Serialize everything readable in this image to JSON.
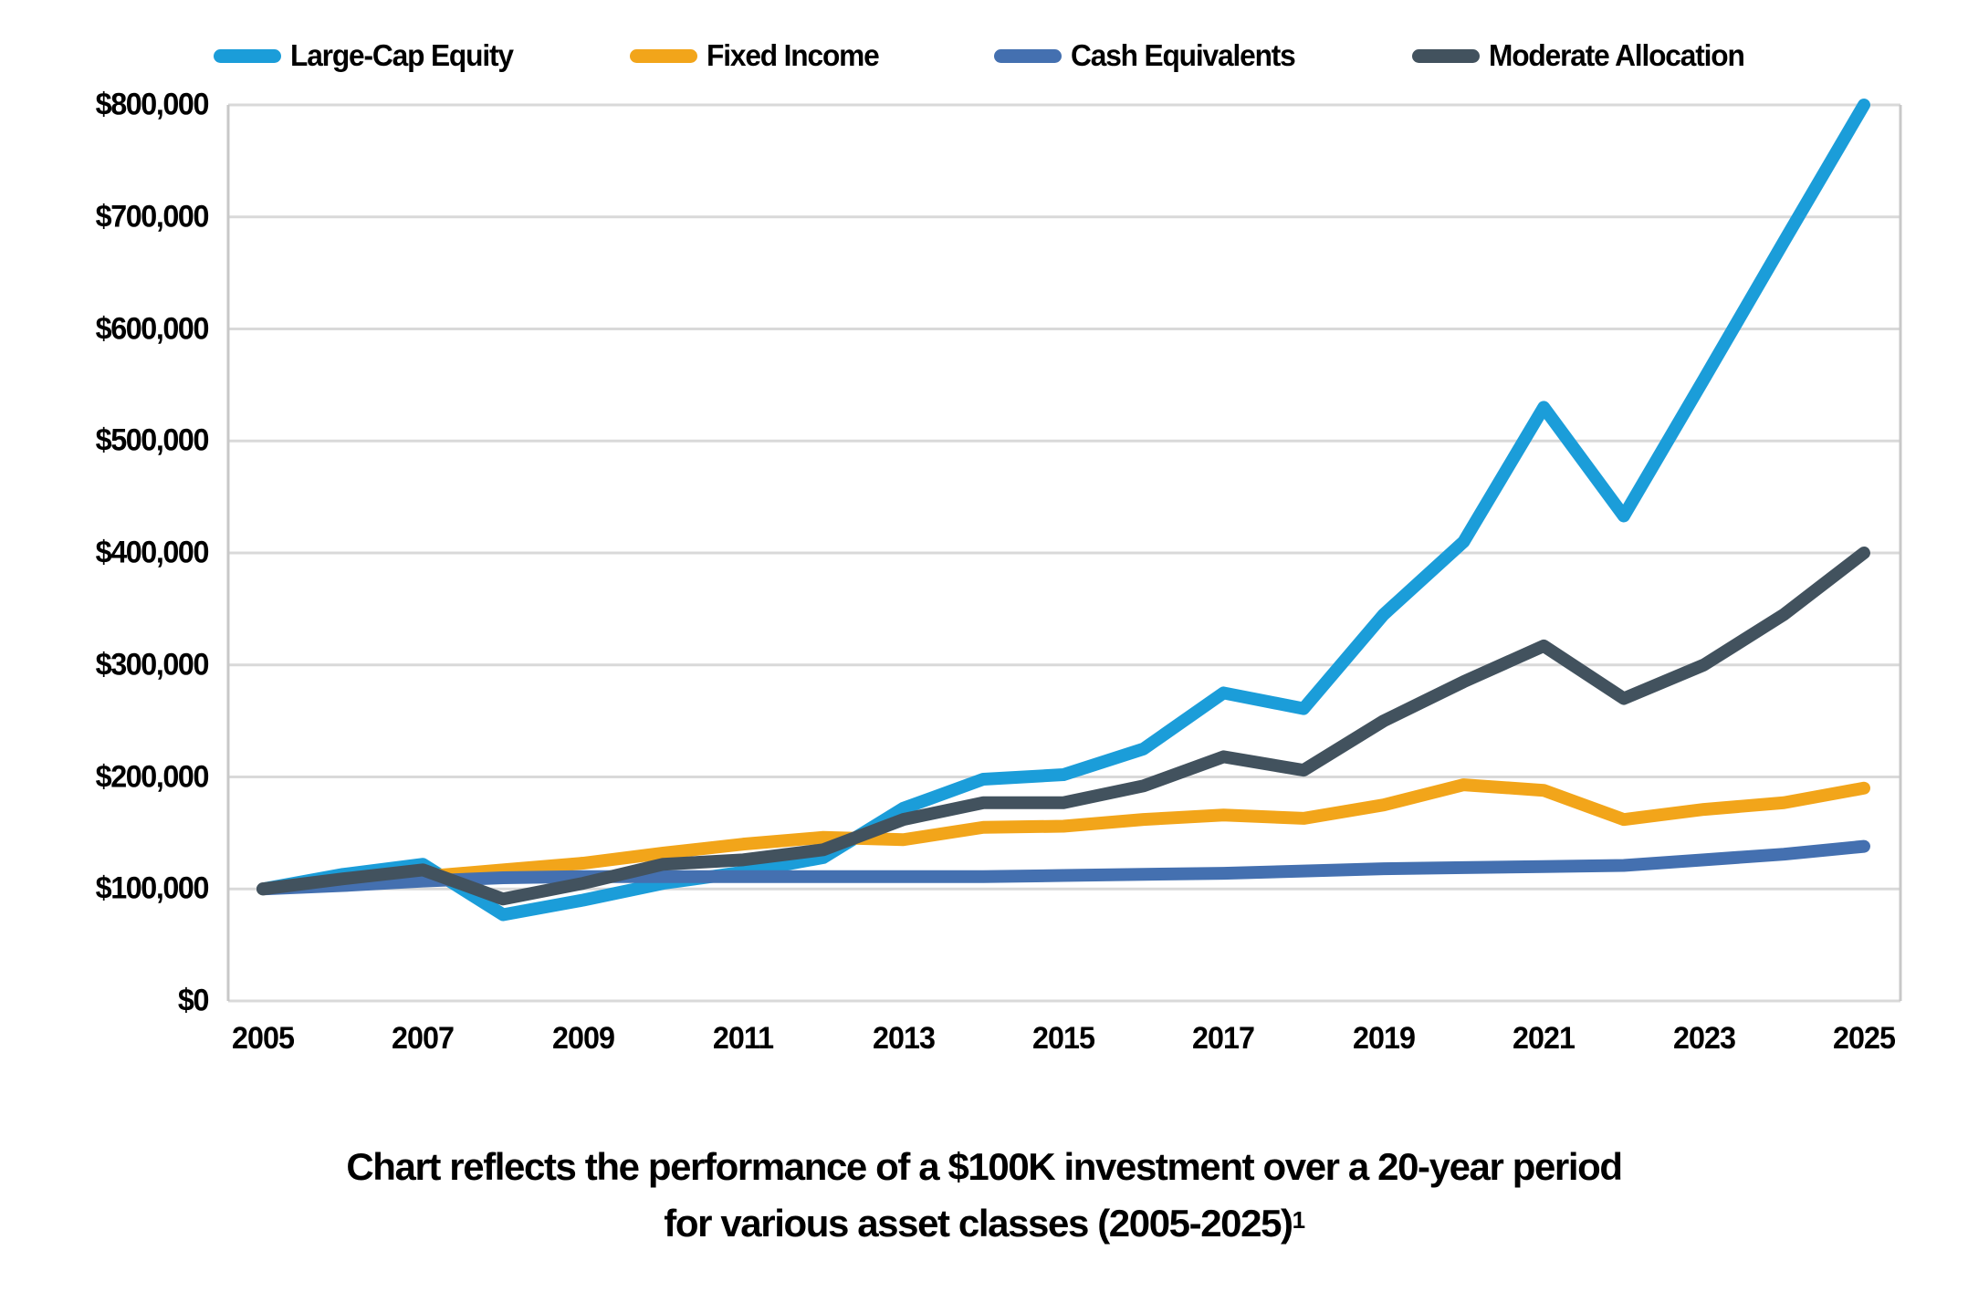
{
  "chart_data": {
    "type": "line",
    "title": "",
    "xlabel": "",
    "ylabel": "",
    "x": [
      2005,
      2006,
      2007,
      2008,
      2009,
      2010,
      2011,
      2012,
      2013,
      2014,
      2015,
      2016,
      2017,
      2018,
      2019,
      2020,
      2021,
      2022,
      2023,
      2024,
      2025
    ],
    "series": [
      {
        "name": "Large-Cap Equity",
        "color": "#1B9DD9",
        "values": [
          100000,
          113000,
          122000,
          77000,
          90000,
          105000,
          115000,
          128000,
          172000,
          198000,
          202000,
          225000,
          275000,
          261000,
          345000,
          410000,
          530000,
          433000,
          555000,
          678000,
          800000
        ]
      },
      {
        "name": "Fixed Income",
        "color": "#F2A51A",
        "values": [
          100000,
          106000,
          111000,
          117000,
          123000,
          132000,
          140000,
          146000,
          144000,
          155000,
          156000,
          162000,
          166000,
          163000,
          175000,
          193000,
          188000,
          162000,
          171000,
          177000,
          190000
        ]
      },
      {
        "name": "Cash Equivalents",
        "color": "#4470B0",
        "values": [
          100000,
          103000,
          107000,
          110000,
          111000,
          111000,
          111000,
          111000,
          111000,
          111000,
          112000,
          113000,
          114000,
          116000,
          118000,
          119000,
          120000,
          121000,
          126000,
          131000,
          138000
        ]
      },
      {
        "name": "Moderate Allocation",
        "color": "#42525E",
        "values": [
          100000,
          109000,
          117000,
          91000,
          105000,
          122000,
          126000,
          135000,
          162000,
          177000,
          177000,
          192000,
          218000,
          206000,
          250000,
          285000,
          317000,
          270000,
          300000,
          345000,
          400000
        ]
      }
    ],
    "ylim": [
      0,
      800000
    ],
    "y_ticks": [
      {
        "v": 0,
        "label": "$0"
      },
      {
        "v": 100000,
        "label": "$100,000"
      },
      {
        "v": 200000,
        "label": "$200,000"
      },
      {
        "v": 300000,
        "label": "$300,000"
      },
      {
        "v": 400000,
        "label": "$400,000"
      },
      {
        "v": 500000,
        "label": "$500,000"
      },
      {
        "v": 600000,
        "label": "$600,000"
      },
      {
        "v": 700000,
        "label": "$700,000"
      },
      {
        "v": 800000,
        "label": "$800,000"
      }
    ],
    "x_ticks": [
      {
        "year": 2005,
        "label": "2005"
      },
      {
        "year": 2007,
        "label": "2007"
      },
      {
        "year": 2009,
        "label": "2009"
      },
      {
        "year": 2011,
        "label": "2011"
      },
      {
        "year": 2013,
        "label": "2013"
      },
      {
        "year": 2015,
        "label": "2015"
      },
      {
        "year": 2017,
        "label": "2017"
      },
      {
        "year": 2019,
        "label": "2019"
      },
      {
        "year": 2021,
        "label": "2021"
      },
      {
        "year": 2023,
        "label": "2023"
      },
      {
        "year": 2025,
        "label": "2025"
      }
    ],
    "grid": true,
    "legend_position": "top",
    "gridline_color": "#D9D9D9",
    "axis_line_color": "#C8C8C8"
  },
  "caption": {
    "line1": "Chart reflects the performance of a $100K investment over a 20-year period",
    "line2": "for various asset classes (2005-2025)",
    "footnote_marker": "1"
  }
}
